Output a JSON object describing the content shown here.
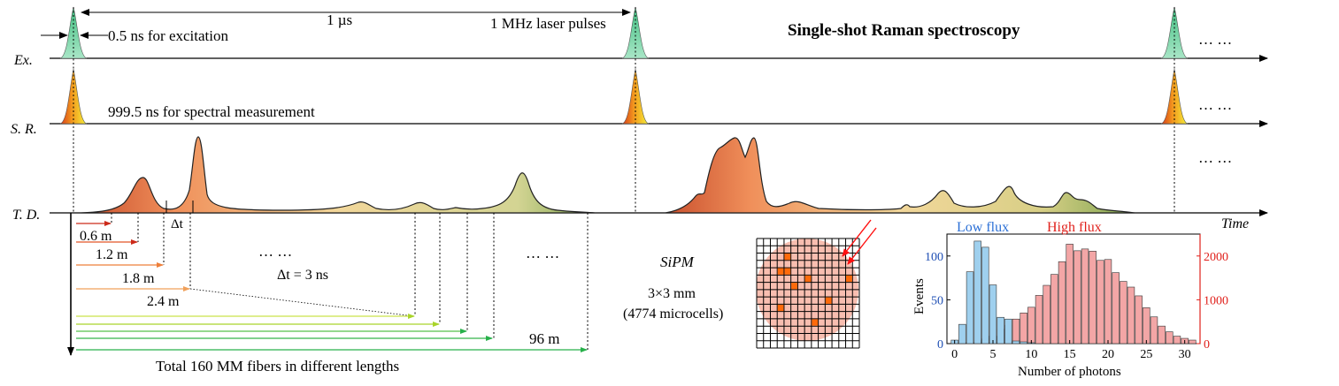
{
  "diagram": {
    "period_label": "1 µs",
    "excitation_label": "0.5 ns for excitation",
    "laser_label": "1 MHz laser pulses",
    "title": "Single-shot Raman spectroscopy",
    "measurement_label": "999.5 ns for spectral measurement",
    "ellipsis": "… …",
    "rows": {
      "ex": "Ex.",
      "sr": "S. R.",
      "td": "T. D."
    },
    "time_label": "Time",
    "delta_t": "Δt",
    "delta_t_value": "Δt = 3 ns",
    "fiber_lengths": [
      "0.6 m",
      "1.2 m",
      "1.8 m",
      "2.4 m"
    ],
    "fiber_max": "96 m",
    "fibers_caption": "Total 160 MM fibers in different lengths",
    "sipm": {
      "title": "SiPM",
      "size": "3×3 mm",
      "cells": "(4774 microcells)"
    }
  },
  "chart_data": {
    "type": "bar",
    "xlabel": "Number of photons",
    "ylabel": "Events",
    "xlim": [
      -1,
      32
    ],
    "xticks": [
      0,
      5,
      10,
      15,
      20,
      25,
      30
    ],
    "left_axis": {
      "ylim": [
        0,
        125
      ],
      "ticks": [
        0,
        50,
        100
      ],
      "color": "#1f4fb4"
    },
    "right_axis": {
      "ylim": [
        0,
        2500
      ],
      "ticks": [
        0,
        1000,
        2000
      ],
      "color": "#e0201b"
    },
    "series": [
      {
        "name": "Low flux",
        "axis": "left",
        "color": "#9fd0ee",
        "x": [
          0,
          1,
          2,
          3,
          4,
          5,
          6,
          7,
          8,
          9,
          10
        ],
        "values": [
          4,
          22,
          82,
          117,
          110,
          67,
          30,
          28,
          3,
          2,
          1
        ]
      },
      {
        "name": "High flux",
        "axis": "right",
        "color": "#f3a6a6",
        "x": [
          2,
          3,
          4,
          5,
          6,
          7,
          8,
          9,
          10,
          11,
          12,
          13,
          14,
          15,
          16,
          17,
          18,
          19,
          20,
          21,
          22,
          23,
          24,
          25,
          26,
          27,
          28,
          29,
          30,
          31
        ],
        "values": [
          20,
          70,
          110,
          170,
          330,
          420,
          560,
          700,
          830,
          1100,
          1330,
          1580,
          1870,
          2270,
          2120,
          2160,
          2110,
          1900,
          1920,
          1620,
          1420,
          1290,
          1090,
          820,
          610,
          400,
          270,
          170,
          120,
          80
        ]
      }
    ]
  }
}
